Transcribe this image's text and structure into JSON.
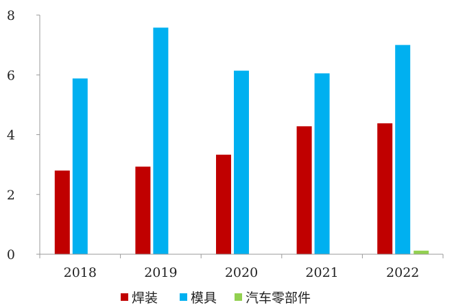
{
  "chart_data": {
    "type": "bar",
    "categories": [
      "2018",
      "2019",
      "2020",
      "2021",
      "2022"
    ],
    "series": [
      {
        "name": "焊装",
        "color": "#C00000",
        "values": [
          2.8,
          2.93,
          3.33,
          4.28,
          4.38
        ]
      },
      {
        "name": "模具",
        "color": "#00B0F0",
        "values": [
          5.88,
          7.58,
          6.14,
          6.05,
          7.0
        ]
      },
      {
        "name": "汽车零部件",
        "color": "#92D050",
        "values": [
          0,
          0,
          0,
          0,
          0.12
        ]
      }
    ],
    "yticks": [
      "0",
      "2",
      "4",
      "6",
      "8"
    ],
    "ylim": [
      0,
      8
    ],
    "xlabel": "",
    "ylabel": "",
    "legend_position": "bottom"
  }
}
